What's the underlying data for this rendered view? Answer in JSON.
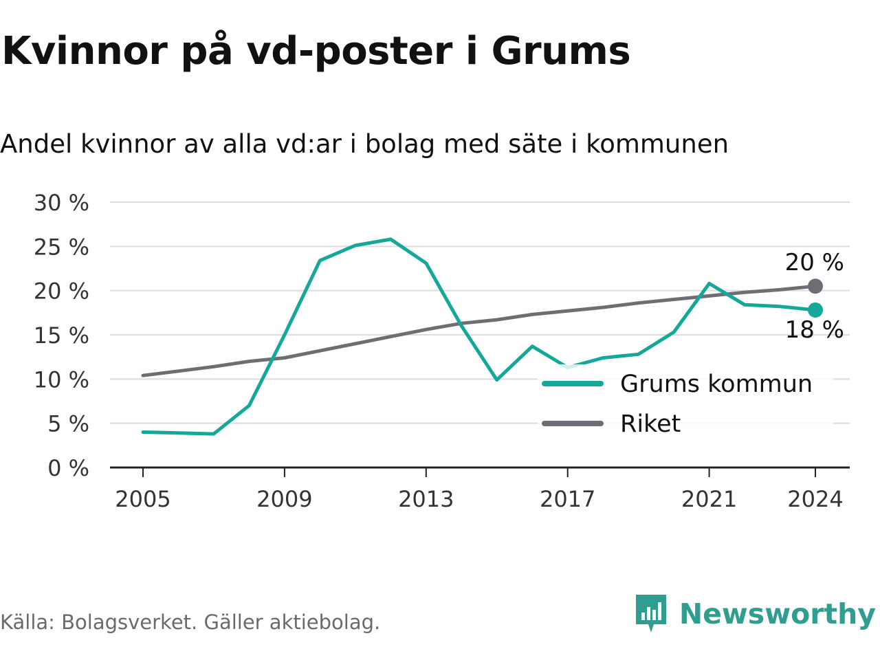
{
  "title": "Kvinnor på vd-poster i Grums",
  "subtitle": "Andel kvinnor av alla vd:ar i bolag med säte i kommunen",
  "source": "Källa: Bolagsverket. Gäller aktiebolag.",
  "brand": {
    "name": "Newsworthy",
    "icon": "newsworthy-logo-icon",
    "color": "#2f9d8f"
  },
  "colors": {
    "grums": "#15a898",
    "riket": "#6e6d73",
    "grid": "#dcdcdc",
    "axis": "#222222"
  },
  "chart_data": {
    "type": "line",
    "x": [
      2005,
      2006,
      2007,
      2008,
      2009,
      2010,
      2011,
      2012,
      2013,
      2014,
      2015,
      2016,
      2017,
      2018,
      2019,
      2020,
      2021,
      2022,
      2023,
      2024
    ],
    "x_ticks": [
      2005,
      2009,
      2013,
      2017,
      2021,
      2024
    ],
    "y_ticks": [
      0,
      5,
      10,
      15,
      20,
      25,
      30
    ],
    "y_tick_labels": [
      "0 %",
      "5 %",
      "10 %",
      "15 %",
      "20 %",
      "25 %",
      "30 %"
    ],
    "ylim": [
      0,
      30
    ],
    "grid": true,
    "legend_position": "bottom-right",
    "series": [
      {
        "name": "Grums kommun",
        "key": "grums",
        "values": [
          4.0,
          3.9,
          3.8,
          7.0,
          15.0,
          23.4,
          25.1,
          25.8,
          23.1,
          16.0,
          9.9,
          13.7,
          11.3,
          12.4,
          12.8,
          15.3,
          20.8,
          18.4,
          18.2,
          17.8
        ],
        "end_label": "18 %"
      },
      {
        "name": "Riket",
        "key": "riket",
        "values": [
          10.4,
          10.9,
          11.4,
          12.0,
          12.4,
          13.2,
          14.0,
          14.8,
          15.6,
          16.3,
          16.7,
          17.3,
          17.7,
          18.1,
          18.6,
          19.0,
          19.4,
          19.8,
          20.1,
          20.5
        ],
        "end_label": "20 %"
      }
    ]
  }
}
